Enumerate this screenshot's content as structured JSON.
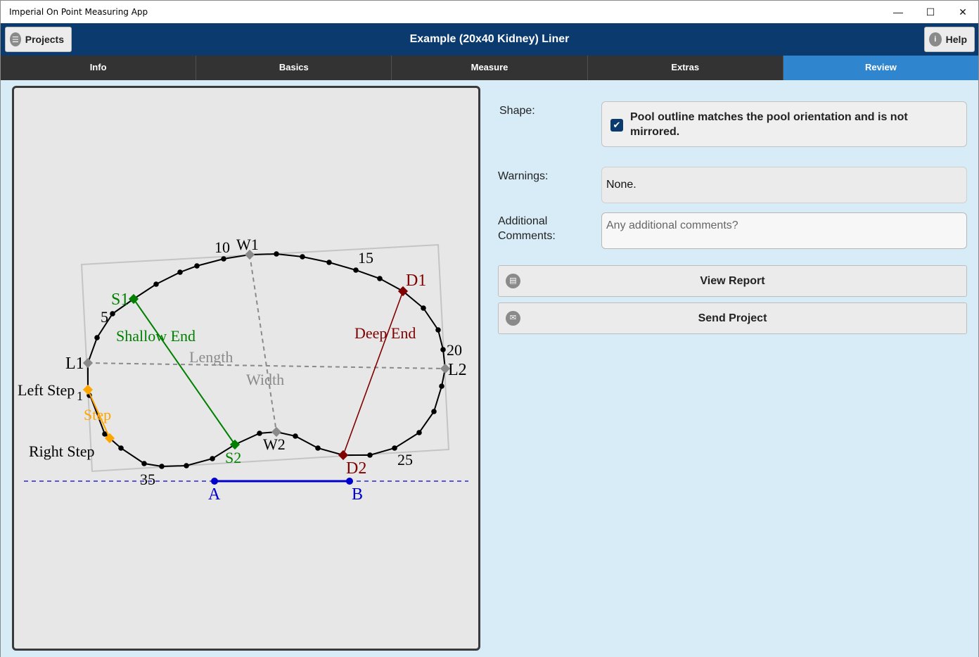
{
  "window": {
    "title": "Imperial On Point Measuring App"
  },
  "header": {
    "title": "Example (20x40 Kidney) Liner",
    "projects_label": "Projects",
    "help_label": "Help"
  },
  "tabs": [
    {
      "label": "Info",
      "active": false
    },
    {
      "label": "Basics",
      "active": false
    },
    {
      "label": "Measure",
      "active": false
    },
    {
      "label": "Extras",
      "active": false
    },
    {
      "label": "Review",
      "active": true
    }
  ],
  "diagram": {
    "labels": {
      "w1": "W1",
      "w2": "W2",
      "l1": "L1",
      "l2": "L2",
      "s1": "S1",
      "s2": "S2",
      "d1": "D1",
      "d2": "D2",
      "a": "A",
      "b": "B",
      "shallow_end": "Shallow End",
      "deep_end": "Deep End",
      "length": "Length",
      "width": "Width",
      "left_step": "Left Step",
      "right_step": "Right Step",
      "step": "Step",
      "step_num": "1",
      "n5": "5",
      "n10": "10",
      "n15": "15",
      "n20": "20",
      "n25": "25",
      "n35": "35"
    },
    "colors": {
      "outline": "#000000",
      "shallow": "#008000",
      "deep": "#800000",
      "measure": "#808080",
      "step": "#ffa500",
      "baseline": "#0000cc"
    }
  },
  "review": {
    "shape_label": "Shape:",
    "shape_text": "Pool outline matches the pool orientation and is not mirrored.",
    "shape_checked": true,
    "warnings_label": "Warnings:",
    "warnings_value": "None.",
    "comments_label": "Additional Comments:",
    "comments_placeholder": "Any additional comments?",
    "comments_value": "",
    "view_report_label": "View Report",
    "send_project_label": "Send Project"
  }
}
